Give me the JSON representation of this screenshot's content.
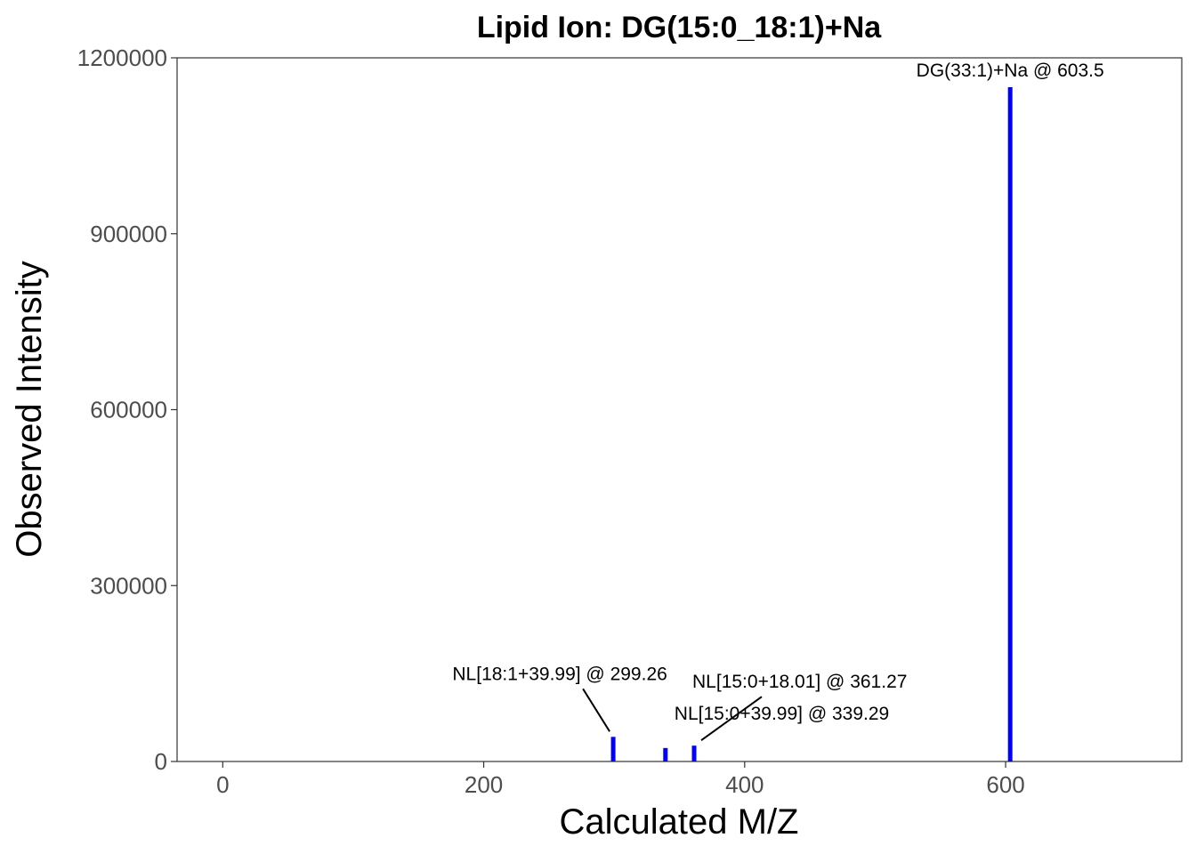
{
  "chart_data": {
    "type": "bar",
    "title": "Lipid Ion: DG(15:0_18:1)+Na",
    "xlabel": "Calculated M/Z",
    "ylabel": "Observed Intensity",
    "xlim": [
      -35,
      735
    ],
    "ylim": [
      0,
      1200000
    ],
    "x_ticks": [
      0,
      200,
      400,
      600
    ],
    "y_ticks": [
      0,
      300000,
      600000,
      900000,
      1200000
    ],
    "grid": false,
    "bar_color": "#0000ff",
    "series": [
      {
        "points": [
          {
            "x": 299.26,
            "y": 42000
          },
          {
            "x": 339.29,
            "y": 23000
          },
          {
            "x": 361.27,
            "y": 27000
          },
          {
            "x": 603.5,
            "y": 1150000
          }
        ]
      }
    ],
    "annotations": [
      {
        "text": "NL[18:1+39.99] @ 299.26",
        "x": 299.26,
        "y": 42000
      },
      {
        "text": "NL[15:0+39.99] @ 339.29",
        "x": 339.29,
        "y": 23000
      },
      {
        "text": "NL[15:0+18.01] @ 361.27",
        "x": 361.27,
        "y": 27000
      },
      {
        "text": "DG(33:1)+Na @ 603.5",
        "x": 603.5,
        "y": 1150000
      }
    ]
  }
}
